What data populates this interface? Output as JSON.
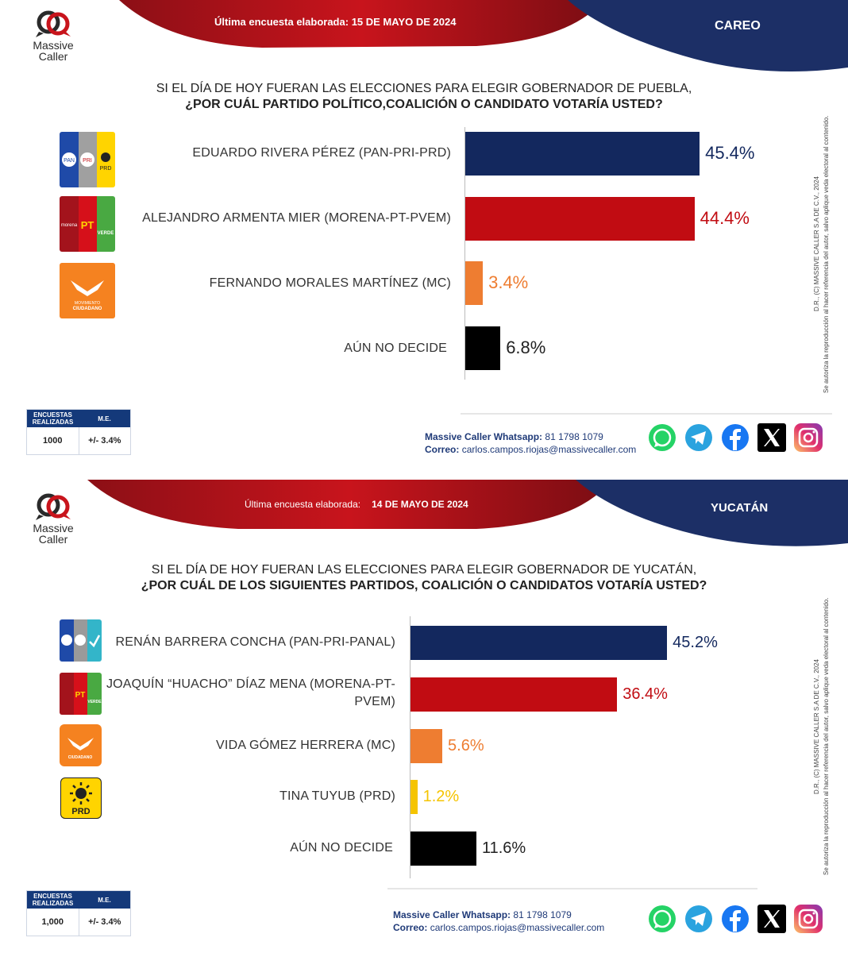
{
  "panels": [
    {
      "header": {
        "date_label": "Última encuesta elaborada:",
        "date_value": "15 DE MAYO DE 2024",
        "state": "CAREO"
      },
      "logo": {
        "line1": "Massive",
        "line2": "Caller"
      },
      "question": {
        "line1": "SI EL DÍA DE HOY FUERAN LAS ELECCIONES PARA ELEGIR GOBERNADOR DE PUEBLA,",
        "line2": "¿POR CUÁL PARTIDO POLÍTICO,COALICIÓN  O CANDIDATO  VOTARÍA USTED?"
      },
      "chart_data": {
        "type": "bar",
        "orientation": "horizontal",
        "categories": [
          "EDUARDO RIVERA PÉREZ (PAN-PRI-PRD)",
          "ALEJANDRO ARMENTA MIER (MORENA-PT-PVEM)",
          "FERNANDO MORALES MARTÍNEZ (MC)",
          "AÚN NO DECIDE"
        ],
        "values": [
          45.4,
          44.4,
          3.4,
          6.8
        ],
        "labels": [
          "45.4%",
          "44.4%",
          "3.4%",
          "6.8%"
        ],
        "colors": [
          "#13285e",
          "#c10c12",
          "#ee7d31",
          "#000000"
        ],
        "label_colors": [
          "#13285e",
          "#c10c12",
          "#ee7d31",
          "#222222"
        ],
        "xlim": [
          0,
          50
        ]
      },
      "parties": [
        "pan-pri-prd",
        "morena-pt-verde",
        "movimiento-ciudadano",
        "none"
      ],
      "stats": {
        "h1": "ENCUESTAS REALIZADAS",
        "h2": "M.E.",
        "v1": "1000",
        "v2": "+/- 3.4%"
      },
      "contact": {
        "wa_label": "Massive Caller Whatsapp:",
        "wa_number": "81 1798 1079",
        "mail_label": "Correo:",
        "mail": "carlos.campos.riojas@massivecaller.com"
      },
      "side_text": {
        "line1": "D.R., (C) MASSIVE CALLER S.A DE C.V., 2024",
        "line2": "Se autoriza la reproducción al hacer referencia del autor, salvo aplique veda electoral al contenido."
      }
    },
    {
      "header": {
        "date_label": "Última encuesta elaborada:",
        "date_value": "14 DE MAYO DE 2024",
        "state": "YUCATÁN"
      },
      "logo": {
        "line1": "Massive",
        "line2": "Caller"
      },
      "question": {
        "line1": "SI EL DÍA DE HOY FUERAN LAS ELECCIONES PARA ELEGIR GOBERNADOR DE YUCATÁN,",
        "line2": "¿POR CUÁL DE LOS SIGUIENTES PARTIDOS, COALICIÓN  O CANDIDATOS VOTARÍA USTED?"
      },
      "chart_data": {
        "type": "bar",
        "orientation": "horizontal",
        "categories": [
          "RENÁN BARRERA CONCHA  (PAN-PRI-PANAL)",
          "JOAQUÍN “HUACHO” DÍAZ MENA  (MORENA-PT-PVEM)",
          "VIDA GÓMEZ HERRERA (MC)",
          "TINA TUYUB (PRD)",
          "AÚN NO DECIDE"
        ],
        "values": [
          45.2,
          36.4,
          5.6,
          1.2,
          11.6
        ],
        "labels": [
          "45.2%",
          "36.4%",
          "5.6%",
          "1.2%",
          "11.6%"
        ],
        "colors": [
          "#13285e",
          "#c10c12",
          "#ee7d31",
          "#f5c400",
          "#000000"
        ],
        "label_colors": [
          "#13285e",
          "#c10c12",
          "#ee7d31",
          "#f5c400",
          "#222222"
        ],
        "xlim": [
          0,
          50
        ]
      },
      "parties": [
        "pan-pri-panal",
        "morena-pt-verde",
        "movimiento-ciudadano",
        "prd",
        "none"
      ],
      "stats": {
        "h1": "ENCUESTAS REALIZADAS",
        "h2": "M.E.",
        "v1": "1,000",
        "v2": "+/- 3.4%"
      },
      "contact": {
        "wa_label": "Massive Caller Whatsapp:",
        "wa_number": "81 1798 1079",
        "mail_label": "Correo:",
        "mail": "carlos.campos.riojas@massivecaller.com"
      },
      "side_text": {
        "line1": "D.R., (C) MASSIVE CALLER S.A DE C.V., 2024",
        "line2": "Se autoriza la reproducción al hacer referencia del autor, salvo aplique veda electoral al contenido."
      }
    }
  ],
  "social": [
    "whatsapp-icon",
    "telegram-icon",
    "facebook-icon",
    "x-icon",
    "instagram-icon"
  ]
}
